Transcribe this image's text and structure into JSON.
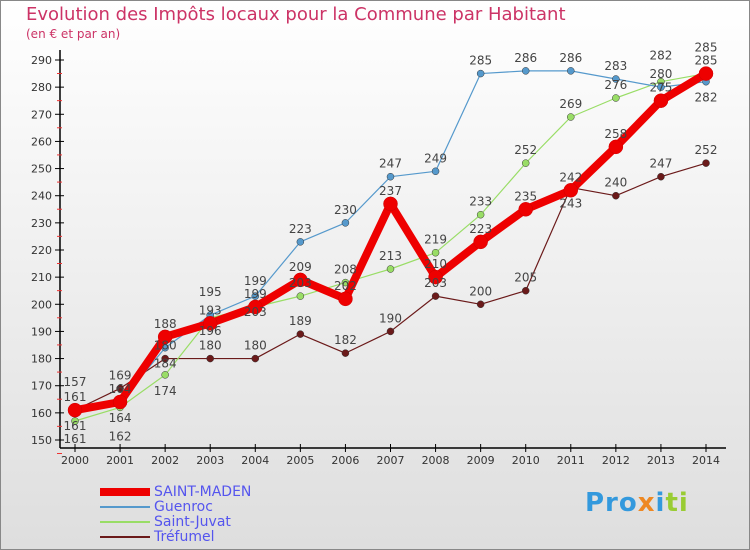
{
  "chart_data": {
    "type": "line",
    "title": "Evolution des Impôts locaux pour la Commune par Habitant",
    "subtitle": "(en € et par an)",
    "x": [
      2000,
      2001,
      2002,
      2003,
      2004,
      2005,
      2006,
      2007,
      2008,
      2009,
      2010,
      2011,
      2012,
      2013,
      2014
    ],
    "ylim": [
      150,
      290
    ],
    "yticks": [
      150,
      160,
      170,
      180,
      190,
      200,
      210,
      220,
      230,
      240,
      250,
      260,
      270,
      280,
      290
    ],
    "grid": false,
    "legend": "bottom-left",
    "series": [
      {
        "name": "SAINT-MADEN",
        "color": "#ee0000",
        "width": 8,
        "values": [
          161,
          164,
          188,
          193,
          199,
          209,
          202,
          237,
          210,
          223,
          235,
          242,
          258,
          275,
          285
        ]
      },
      {
        "name": "Guenroc",
        "color": "#5599cc",
        "width": 1.2,
        "values": [
          161,
          164,
          184,
          196,
          203,
          223,
          230,
          247,
          249,
          285,
          286,
          286,
          283,
          280,
          282
        ]
      },
      {
        "name": "Saint-Juvat",
        "color": "#99dd66",
        "width": 1.2,
        "values": [
          157,
          162,
          174,
          195,
          199,
          203,
          208,
          213,
          219,
          233,
          252,
          269,
          276,
          282,
          285
        ]
      },
      {
        "name": "Tréfumel",
        "color": "#6b1a1a",
        "width": 1.2,
        "values": [
          161,
          169,
          180,
          180,
          180,
          189,
          182,
          190,
          203,
          200,
          205,
          243,
          240,
          247,
          252
        ]
      }
    ]
  },
  "logo": "Proxiti"
}
